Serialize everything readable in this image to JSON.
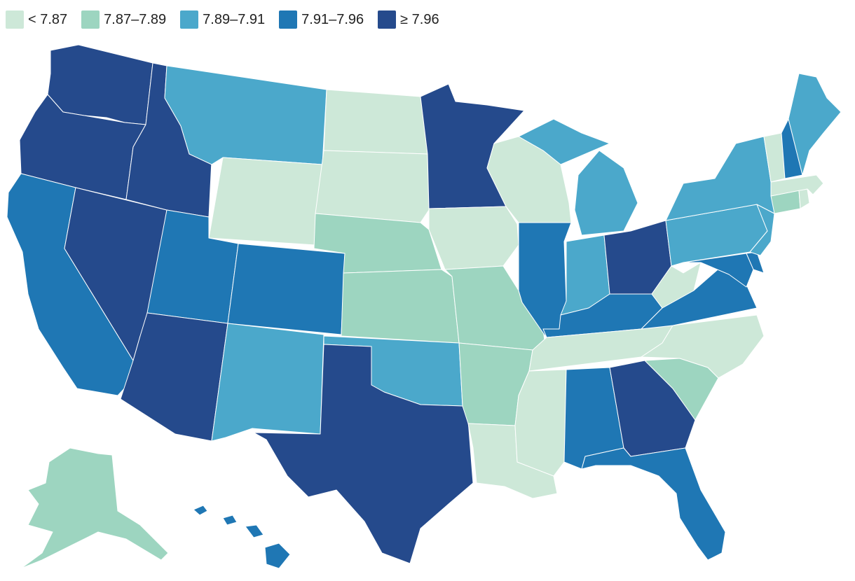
{
  "legend": [
    {
      "label": "< 7.87",
      "color": "#cde8d8"
    },
    {
      "label": "7.87–7.89",
      "color": "#9dd5c0"
    },
    {
      "label": "7.89–7.91",
      "color": "#4ba8cb"
    },
    {
      "label": "7.91–7.96",
      "color": "#1f77b4"
    },
    {
      "label": "≥ 7.96",
      "color": "#254a8c"
    }
  ],
  "states": [
    {
      "id": "WA",
      "class": 4
    },
    {
      "id": "OR",
      "class": 4
    },
    {
      "id": "CA",
      "class": 3
    },
    {
      "id": "NV",
      "class": 4
    },
    {
      "id": "ID",
      "class": 4
    },
    {
      "id": "MT",
      "class": 2
    },
    {
      "id": "WY",
      "class": 0
    },
    {
      "id": "UT",
      "class": 3
    },
    {
      "id": "AZ",
      "class": 4
    },
    {
      "id": "CO",
      "class": 3
    },
    {
      "id": "NM",
      "class": 2
    },
    {
      "id": "ND",
      "class": 0
    },
    {
      "id": "SD",
      "class": 0
    },
    {
      "id": "NE",
      "class": 1
    },
    {
      "id": "KS",
      "class": 1
    },
    {
      "id": "OK",
      "class": 2
    },
    {
      "id": "TX",
      "class": 4
    },
    {
      "id": "MN",
      "class": 4
    },
    {
      "id": "IA",
      "class": 0
    },
    {
      "id": "MO",
      "class": 1
    },
    {
      "id": "AR",
      "class": 1
    },
    {
      "id": "LA",
      "class": 0
    },
    {
      "id": "WI",
      "class": 0
    },
    {
      "id": "IL",
      "class": 3
    },
    {
      "id": "MI",
      "class": 2
    },
    {
      "id": "IN",
      "class": 2
    },
    {
      "id": "OH",
      "class": 4
    },
    {
      "id": "KY",
      "class": 3
    },
    {
      "id": "TN",
      "class": 0
    },
    {
      "id": "MS",
      "class": 0
    },
    {
      "id": "AL",
      "class": 3
    },
    {
      "id": "GA",
      "class": 4
    },
    {
      "id": "FL",
      "class": 3
    },
    {
      "id": "SC",
      "class": 1
    },
    {
      "id": "NC",
      "class": 0
    },
    {
      "id": "VA",
      "class": 3
    },
    {
      "id": "WV",
      "class": 0
    },
    {
      "id": "MD",
      "class": 3
    },
    {
      "id": "DE",
      "class": 3
    },
    {
      "id": "PA",
      "class": 2
    },
    {
      "id": "NJ",
      "class": 2
    },
    {
      "id": "NY",
      "class": 2
    },
    {
      "id": "CT",
      "class": 1
    },
    {
      "id": "RI",
      "class": 0
    },
    {
      "id": "MA",
      "class": 0
    },
    {
      "id": "VT",
      "class": 0
    },
    {
      "id": "NH",
      "class": 3
    },
    {
      "id": "ME",
      "class": 2
    },
    {
      "id": "AK",
      "class": 1
    },
    {
      "id": "HI",
      "class": 3
    }
  ]
}
